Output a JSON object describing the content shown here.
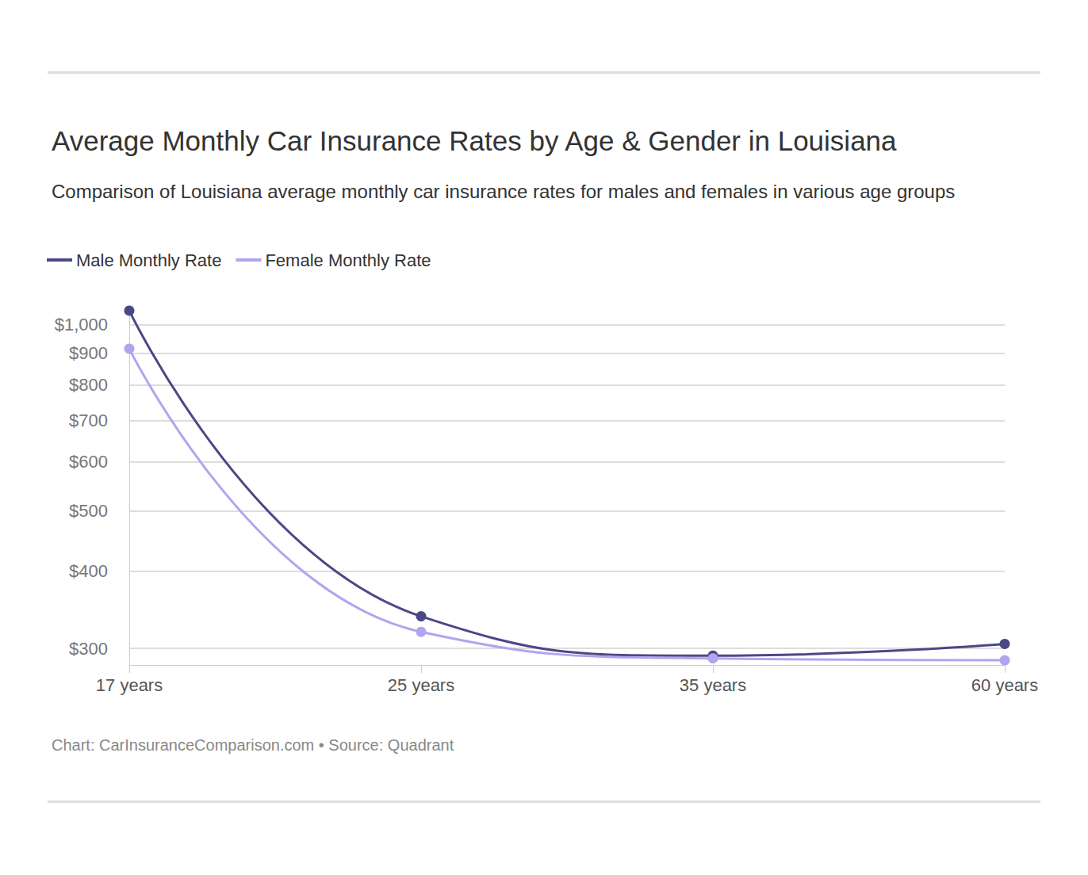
{
  "chart_data": {
    "type": "line",
    "title": "Average Monthly Car Insurance Rates by Age & Gender in Louisiana",
    "subtitle": "Comparison of Louisiana average monthly car insurance rates for males and females in various age groups",
    "source": "Chart: CarInsuranceComparison.com • Source: Quadrant",
    "categories": [
      "17 years",
      "25 years",
      "35 years",
      "60 years"
    ],
    "series": [
      {
        "name": "Male Monthly Rate",
        "color": "#4b4886",
        "values": [
          1054,
          338,
          292,
          305
        ]
      },
      {
        "name": "Female Monthly Rate",
        "color": "#b2a4f0",
        "values": [
          915,
          319,
          289,
          287
        ]
      }
    ],
    "ylim": [
      282,
      1060
    ],
    "yticks": [
      {
        "value": 300,
        "label": "$300"
      },
      {
        "value": 400,
        "label": "$400"
      },
      {
        "value": 500,
        "label": "$500"
      },
      {
        "value": 600,
        "label": "$600"
      },
      {
        "value": 700,
        "label": "$700"
      },
      {
        "value": 800,
        "label": "$800"
      },
      {
        "value": 900,
        "label": "$900"
      },
      {
        "value": 1000,
        "label": "$1,000"
      }
    ],
    "log": "y",
    "grid": true,
    "legend": "top-left",
    "marker": "circle",
    "line_style": "solid"
  }
}
